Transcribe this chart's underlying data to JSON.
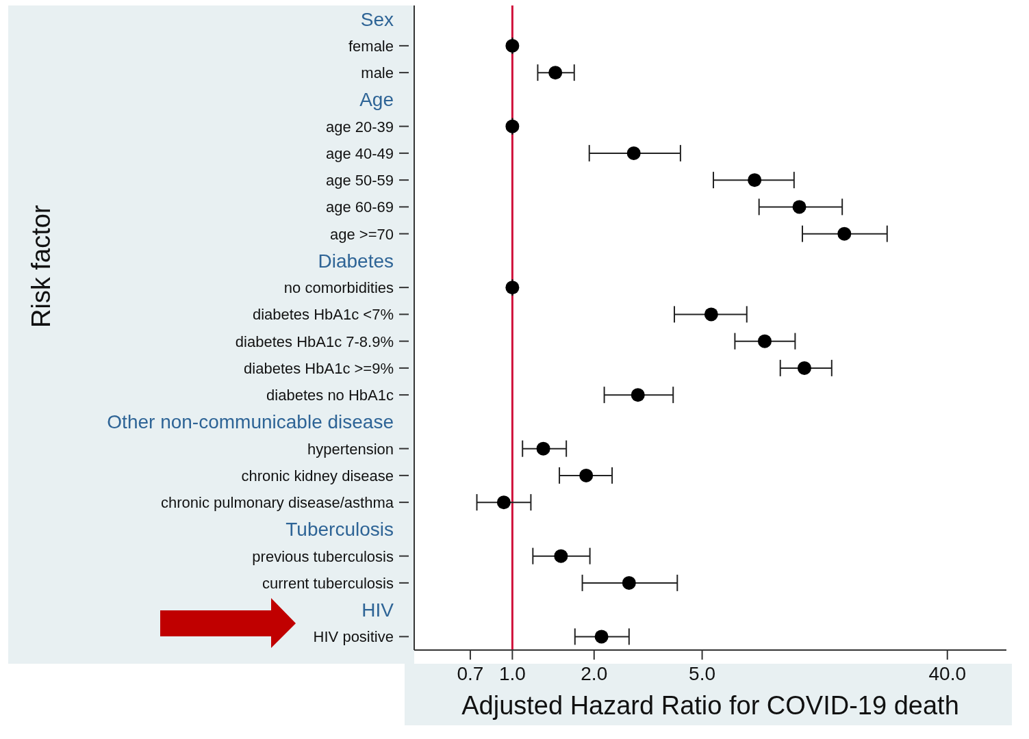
{
  "chart_data": {
    "type": "scatter",
    "orientation": "horizontal",
    "xlabel": "Adjusted Hazard Ratio for COVID-19 death",
    "ylabel": "Risk factor",
    "categories": [
      "Sex",
      "female",
      "male",
      "Age",
      "age 20-39",
      "age 40-49",
      "age 50-59",
      "age 60-69",
      "age >=70",
      "Diabetes",
      "no comorbidities",
      "diabetes HbA1c <7%",
      "diabetes HbA1c 7-8.9%",
      "diabetes HbA1c >=9%",
      "diabetes no HbA1c",
      "Other non-communicable disease",
      "hypertension",
      "chronic kidney disease",
      "chronic pulmonary disease/asthma",
      "Tuberculosis",
      "previous tuberculosis",
      "current tuberculosis",
      "HIV",
      "HIV positive"
    ],
    "series": [
      {
        "color": "#000000",
        "values": [
          null,
          1,
          1.44,
          null,
          1,
          2.8,
          7.8,
          11.4,
          16.7,
          null,
          1,
          5.4,
          8.5,
          11.9,
          2.9,
          null,
          1.3,
          1.87,
          0.93,
          null,
          1.51,
          2.69,
          null,
          2.13
        ],
        "errors": [
          null,
          null,
          [
            1.24,
            1.69
          ],
          null,
          null,
          [
            1.92,
            4.16
          ],
          [
            5.5,
            10.9
          ],
          [
            8.1,
            16.4
          ],
          [
            11.7,
            24
          ],
          null,
          null,
          [
            3.95,
            7.3
          ],
          [
            6.6,
            11
          ],
          [
            9.7,
            15
          ],
          [
            2.18,
            3.91
          ],
          null,
          [
            1.09,
            1.58
          ],
          [
            1.49,
            2.33
          ],
          [
            0.74,
            1.17
          ],
          null,
          [
            1.19,
            1.93
          ],
          [
            1.81,
            4.05
          ],
          null,
          [
            1.7,
            2.69
          ]
        ]
      }
    ],
    "xlim": [
      0.435,
      66
    ],
    "log": "x",
    "xticks": [
      {
        "value": 0.7,
        "label": "0.7"
      },
      {
        "value": 1,
        "label": "1.0"
      },
      {
        "value": 2,
        "label": "2.0"
      },
      {
        "value": 5,
        "label": "5.0"
      },
      {
        "value": 40,
        "label": "40.0"
      }
    ],
    "ref_lines": [
      {
        "axis": "x",
        "value": 1,
        "color": "#d0103a"
      }
    ],
    "grid": false,
    "legend": false,
    "marker": "circle"
  }
}
